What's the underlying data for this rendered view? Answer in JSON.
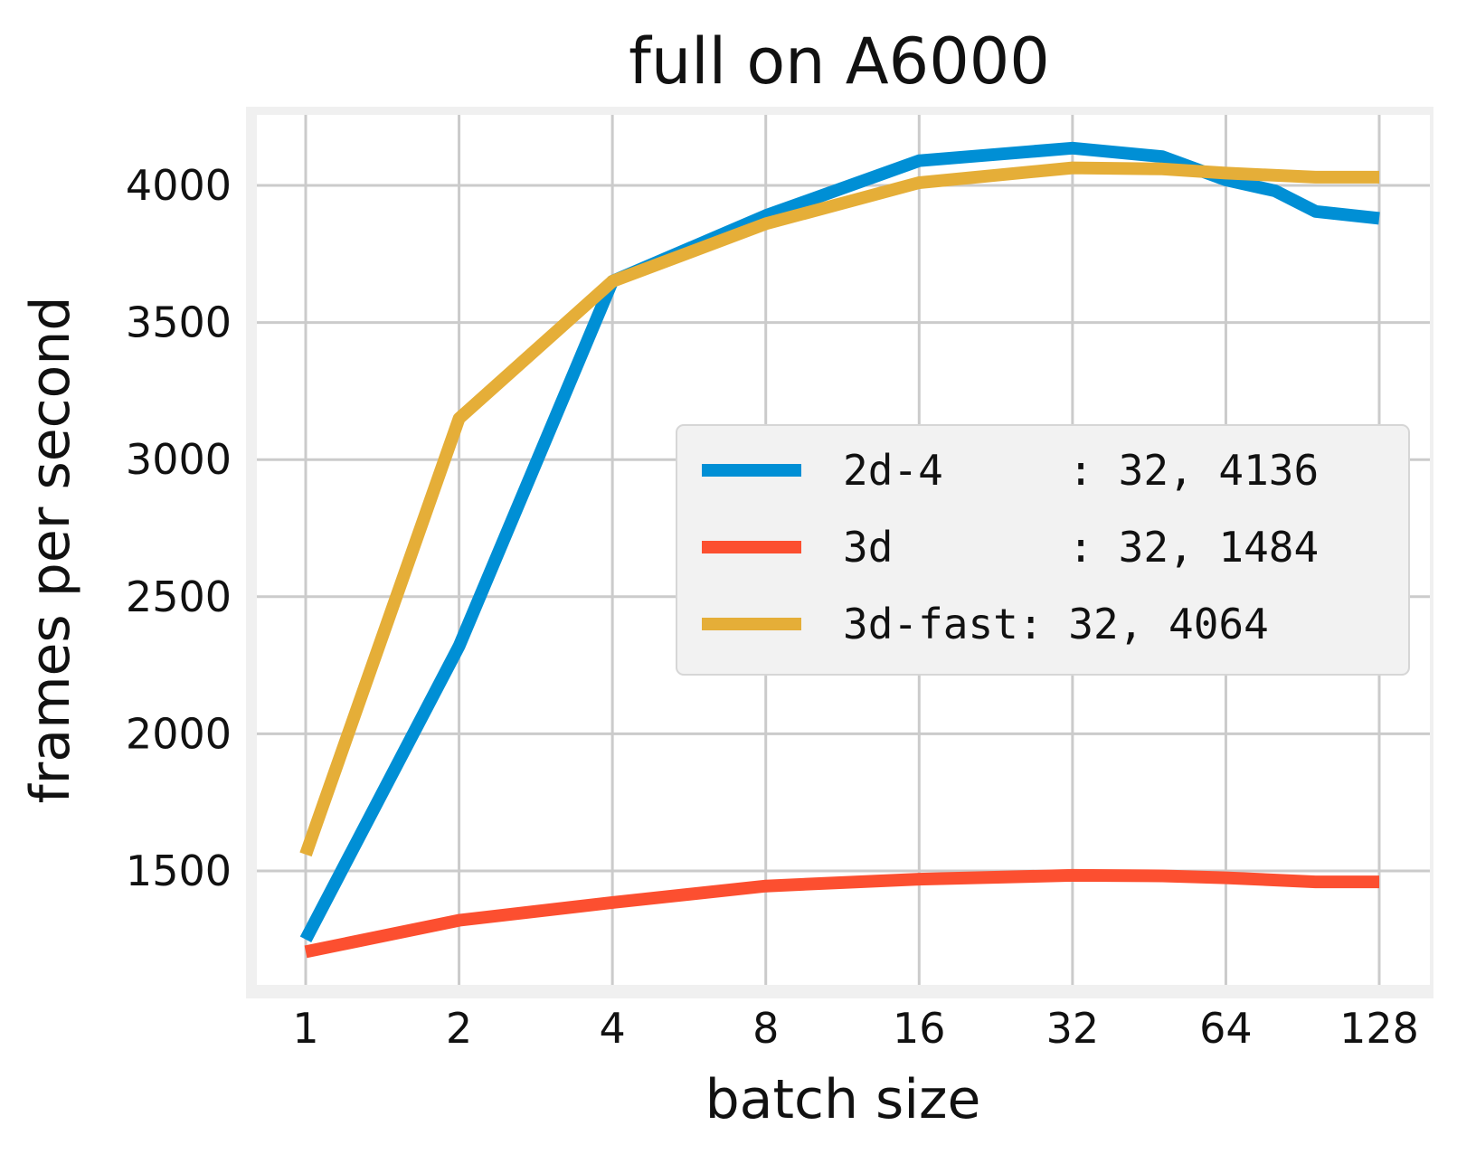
{
  "chart_data": {
    "type": "line",
    "title": "full on A6000",
    "xlabel": "batch size",
    "ylabel": "frames per second",
    "x_scale": "log2",
    "xticks": [
      1,
      2,
      4,
      8,
      16,
      32,
      64,
      128
    ],
    "xtick_labels": [
      "1",
      "2",
      "4",
      "8",
      "16",
      "32",
      "64",
      "128"
    ],
    "yticks": [
      1500,
      2000,
      2500,
      3000,
      3500,
      4000
    ],
    "ytick_labels": [
      "1500",
      "2000",
      "2500",
      "3000",
      "3500",
      "4000"
    ],
    "xlim": [
      0.8,
      150
    ],
    "ylim": [
      1050,
      4270
    ],
    "grid": true,
    "legend_position": "center-right",
    "series": [
      {
        "name": "2d-4",
        "legend_label": "2d-4     : 32, 4136",
        "color": "#008fd5",
        "x": [
          1,
          2,
          4,
          8,
          16,
          32,
          48,
          64,
          80,
          96,
          128
        ],
        "y": [
          1250,
          2320,
          3650,
          3890,
          4090,
          4136,
          4105,
          4020,
          3980,
          3905,
          3880
        ]
      },
      {
        "name": "3d",
        "legend_label": "3d       : 32, 1484",
        "color": "#fc4f30",
        "x": [
          1,
          2,
          4,
          8,
          16,
          32,
          48,
          64,
          96,
          128
        ],
        "y": [
          1205,
          1320,
          1385,
          1445,
          1470,
          1484,
          1482,
          1475,
          1460,
          1460
        ]
      },
      {
        "name": "3d-fast",
        "legend_label": "3d-fast: 32, 4064",
        "color": "#e5ae38",
        "x": [
          1,
          2,
          4,
          8,
          16,
          32,
          48,
          64,
          96,
          128
        ],
        "y": [
          1560,
          3150,
          3650,
          3860,
          4010,
          4064,
          4060,
          4045,
          4030,
          4030
        ]
      }
    ]
  }
}
